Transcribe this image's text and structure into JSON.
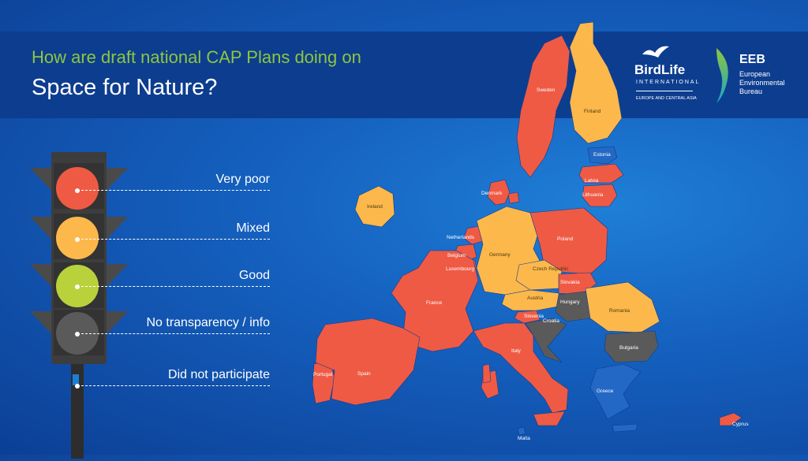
{
  "header": {
    "question_line1": "How are draft national CAP Plans doing on",
    "question_line2": "Space for Nature?"
  },
  "colors": {
    "very_poor": "#ef5a45",
    "mixed": "#fdb84c",
    "good": "#b9d23b",
    "no_info": "#5a5a5a",
    "accent_green": "#8dc63f",
    "banner": "#0d3d8f"
  },
  "legend": [
    {
      "key": "very_poor",
      "label": "Very poor",
      "light_color": "#ef5a45"
    },
    {
      "key": "mixed",
      "label": "Mixed",
      "light_color": "#fdb84c"
    },
    {
      "key": "good",
      "label": "Good",
      "light_color": "#b9d23b"
    },
    {
      "key": "no_info",
      "label": "No transparency / info",
      "light_color": "#5a5a5a"
    },
    {
      "key": "did_not_participate",
      "label": "Did not participate",
      "light_color": "#1561bf"
    }
  ],
  "logos": {
    "birdlife": {
      "name": "BirdLife",
      "sub": "INTERNATIONAL",
      "region": "EUROPE AND CENTRAL ASIA"
    },
    "eeb": {
      "abbr": "EEB",
      "line1": "European",
      "line2": "Environmental",
      "line3": "Bureau"
    }
  },
  "countries": [
    {
      "name": "Sweden",
      "rating": "very_poor"
    },
    {
      "name": "Finland",
      "rating": "mixed"
    },
    {
      "name": "Estonia",
      "rating": "did_not_participate"
    },
    {
      "name": "Latvia",
      "rating": "very_poor"
    },
    {
      "name": "Lithuania",
      "rating": "very_poor"
    },
    {
      "name": "Denmark",
      "rating": "very_poor"
    },
    {
      "name": "Ireland",
      "rating": "mixed"
    },
    {
      "name": "Netherlands",
      "rating": "very_poor"
    },
    {
      "name": "Belgium",
      "rating": "very_poor"
    },
    {
      "name": "Luxembourg",
      "rating": "very_poor"
    },
    {
      "name": "Germany",
      "rating": "mixed"
    },
    {
      "name": "Poland",
      "rating": "very_poor"
    },
    {
      "name": "Czech Republic",
      "rating": "mixed"
    },
    {
      "name": "Slovakia",
      "rating": "very_poor"
    },
    {
      "name": "France",
      "rating": "very_poor"
    },
    {
      "name": "Austria",
      "rating": "mixed"
    },
    {
      "name": "Hungary",
      "rating": "no_info"
    },
    {
      "name": "Romania",
      "rating": "mixed"
    },
    {
      "name": "Slovenia",
      "rating": "very_poor"
    },
    {
      "name": "Croatia",
      "rating": "no_info"
    },
    {
      "name": "Bulgaria",
      "rating": "no_info"
    },
    {
      "name": "Portugal",
      "rating": "very_poor"
    },
    {
      "name": "Spain",
      "rating": "very_poor"
    },
    {
      "name": "Italy",
      "rating": "very_poor"
    },
    {
      "name": "Greece",
      "rating": "did_not_participate"
    },
    {
      "name": "Malta",
      "rating": "did_not_participate"
    },
    {
      "name": "Cyprus",
      "rating": "very_poor"
    }
  ]
}
